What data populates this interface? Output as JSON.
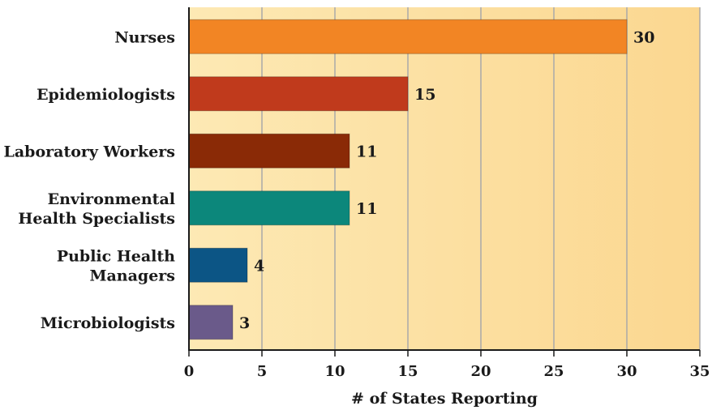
{
  "chart_data": {
    "type": "bar",
    "orientation": "horizontal",
    "title": "",
    "xlabel": "# of States Reporting",
    "ylabel": "",
    "xlim": [
      0,
      35
    ],
    "x_ticks": [
      0,
      5,
      10,
      15,
      20,
      25,
      30,
      35
    ],
    "grid": true,
    "categories": [
      [
        "Nurses"
      ],
      [
        "Epidemiologists"
      ],
      [
        "Laboratory Workers"
      ],
      [
        "Environmental",
        "Health Specialists"
      ],
      [
        "Public Health",
        "Managers"
      ],
      [
        "Microbiologists"
      ]
    ],
    "values": [
      30,
      15,
      11,
      11,
      4,
      3
    ],
    "value_labels": [
      "30",
      "15",
      "11",
      "11",
      "4",
      "3"
    ],
    "colors": [
      "#f28524",
      "#c03a1c",
      "#8a2a06",
      "#0c877b",
      "#0c5585",
      "#6a5a8a"
    ],
    "background_colors": [
      "#fde9b4",
      "#fbd790"
    ]
  }
}
